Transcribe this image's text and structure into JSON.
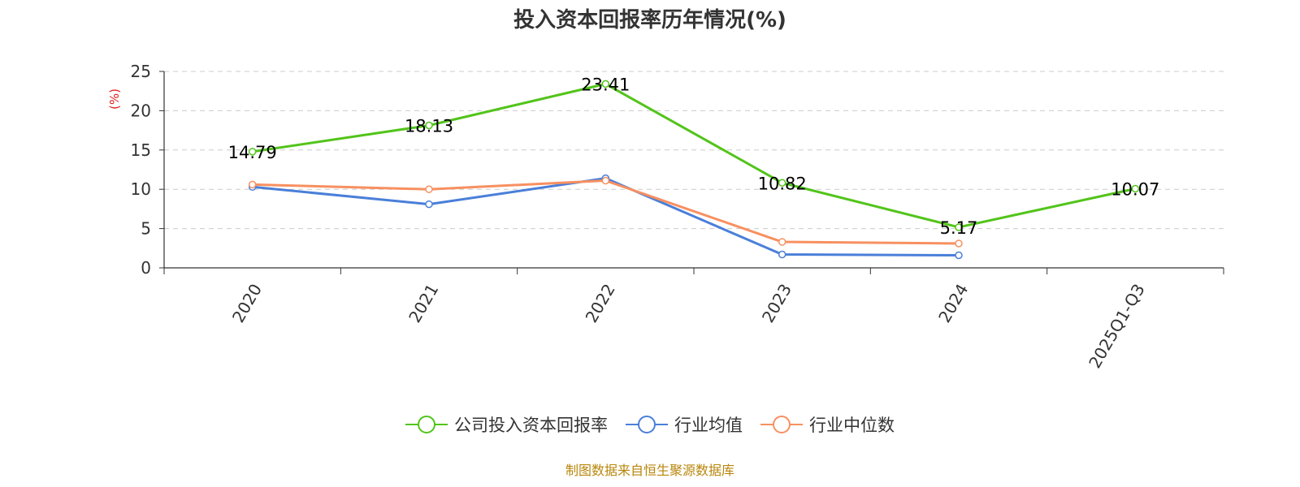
{
  "chart_data": {
    "type": "line",
    "title": "投入资本回报率历年情况(%)",
    "ylabel": "(%)",
    "ylim": [
      0,
      25
    ],
    "yticks": [
      0,
      5,
      10,
      15,
      20,
      25
    ],
    "categories": [
      "2020",
      "2021",
      "2022",
      "2023",
      "2024",
      "2025Q1-Q3"
    ],
    "grid": true,
    "legend_position": "bottom",
    "series": [
      {
        "name": "公司投入资本回报率",
        "color": "#52c41a",
        "values": [
          14.79,
          18.13,
          23.41,
          10.82,
          5.17,
          10.07
        ],
        "labels": [
          "14.79",
          "18.13",
          "23.41",
          "10.82",
          "5.17",
          "10.07"
        ]
      },
      {
        "name": "行业均值",
        "color": "#4a7fd9",
        "values": [
          10.3,
          8.1,
          11.4,
          1.7,
          1.6,
          null
        ]
      },
      {
        "name": "行业中位数",
        "color": "#f79060",
        "values": [
          10.6,
          10.0,
          11.1,
          3.3,
          3.1,
          null
        ]
      }
    ]
  },
  "source": "制图数据来自恒生聚源数据库"
}
